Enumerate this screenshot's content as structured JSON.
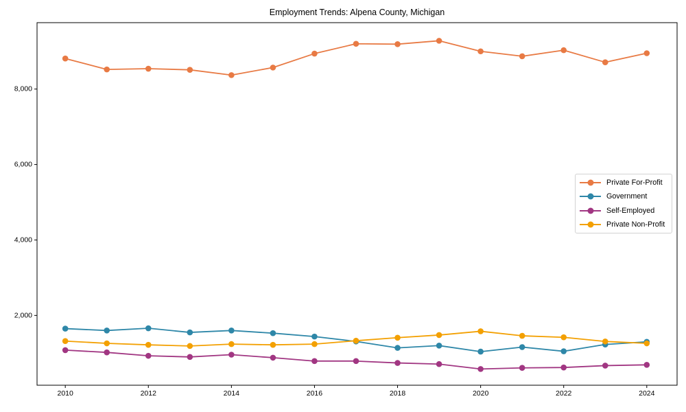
{
  "figure": {
    "title": "Employment Trends: Alpena County, Michigan"
  },
  "chart_data": {
    "type": "line",
    "title": "Employment Trends: Alpena County, Michigan",
    "xlabel": "",
    "ylabel": "",
    "x": [
      2010,
      2011,
      2012,
      2013,
      2014,
      2015,
      2016,
      2017,
      2018,
      2019,
      2020,
      2021,
      2022,
      2023,
      2024
    ],
    "series": [
      {
        "name": "Private For-Profit",
        "color": "#e87a44",
        "values": [
          8810,
          8520,
          8540,
          8510,
          8370,
          8570,
          8940,
          9200,
          9190,
          9280,
          9000,
          8870,
          9030,
          8710,
          8950
        ]
      },
      {
        "name": "Government",
        "color": "#2e87a8",
        "values": [
          1650,
          1600,
          1660,
          1550,
          1600,
          1530,
          1440,
          1310,
          1140,
          1200,
          1040,
          1160,
          1050,
          1230,
          1300
        ]
      },
      {
        "name": "Self-Employed",
        "color": "#a13682",
        "values": [
          1080,
          1020,
          930,
          900,
          960,
          880,
          790,
          790,
          740,
          710,
          580,
          610,
          620,
          670,
          690
        ]
      },
      {
        "name": "Private Non-Profit",
        "color": "#f3a002",
        "values": [
          1320,
          1260,
          1220,
          1190,
          1240,
          1220,
          1240,
          1330,
          1410,
          1480,
          1580,
          1460,
          1420,
          1310,
          1260
        ]
      }
    ],
    "xlim": [
      2009.32,
      2024.73
    ],
    "ylim": [
      150,
      9760
    ],
    "x_ticks": [
      {
        "value": 2010,
        "label": "2010"
      },
      {
        "value": 2012,
        "label": "2012"
      },
      {
        "value": 2014,
        "label": "2014"
      },
      {
        "value": 2016,
        "label": "2016"
      },
      {
        "value": 2018,
        "label": "2018"
      },
      {
        "value": 2020,
        "label": "2020"
      },
      {
        "value": 2022,
        "label": "2022"
      },
      {
        "value": 2024,
        "label": "2024"
      }
    ],
    "y_ticks": [
      {
        "value": 2000,
        "label": "2,000"
      },
      {
        "value": 4000,
        "label": "4,000"
      },
      {
        "value": 6000,
        "label": "6,000"
      },
      {
        "value": 8000,
        "label": "8,000"
      }
    ],
    "grid": false,
    "legend_position": "center-right",
    "axis_color": "#000000"
  }
}
